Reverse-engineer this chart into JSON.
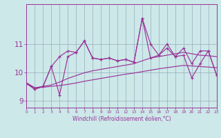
{
  "xlabel": "Windchill (Refroidissement éolien,°C)",
  "bg_color": "#cce8e8",
  "line_color": "#993399",
  "grid_color": "#99aabb",
  "x": [
    0,
    1,
    2,
    3,
    4,
    5,
    6,
    7,
    8,
    9,
    10,
    11,
    12,
    13,
    14,
    15,
    16,
    17,
    18,
    19,
    20,
    21,
    22,
    23
  ],
  "y_spiky1": [
    9.6,
    9.4,
    9.5,
    10.2,
    9.2,
    10.55,
    10.7,
    11.1,
    10.5,
    10.45,
    10.5,
    10.4,
    10.45,
    10.35,
    11.9,
    10.5,
    10.6,
    11.0,
    10.55,
    10.6,
    9.8,
    10.3,
    10.75,
    9.9
  ],
  "y_spiky2": [
    9.6,
    9.4,
    9.5,
    10.2,
    10.55,
    10.75,
    10.7,
    11.1,
    10.5,
    10.45,
    10.5,
    10.4,
    10.45,
    10.35,
    11.9,
    11.0,
    10.6,
    10.85,
    10.55,
    10.85,
    10.3,
    10.75,
    10.75,
    9.9
  ],
  "y_trend1": [
    9.62,
    9.45,
    9.5,
    9.55,
    9.65,
    9.78,
    9.88,
    9.98,
    10.05,
    10.1,
    10.15,
    10.2,
    10.25,
    10.3,
    10.4,
    10.5,
    10.55,
    10.6,
    10.65,
    10.7,
    10.65,
    10.6,
    10.58,
    10.55
  ],
  "y_trend2": [
    9.62,
    9.45,
    9.47,
    9.5,
    9.53,
    9.57,
    9.62,
    9.68,
    9.73,
    9.78,
    9.83,
    9.88,
    9.93,
    9.97,
    10.02,
    10.07,
    10.12,
    10.16,
    10.2,
    10.24,
    10.22,
    10.2,
    10.18,
    10.16
  ],
  "yticks": [
    9,
    10,
    11
  ],
  "ylim": [
    8.75,
    12.4
  ],
  "xlim": [
    0,
    23
  ]
}
